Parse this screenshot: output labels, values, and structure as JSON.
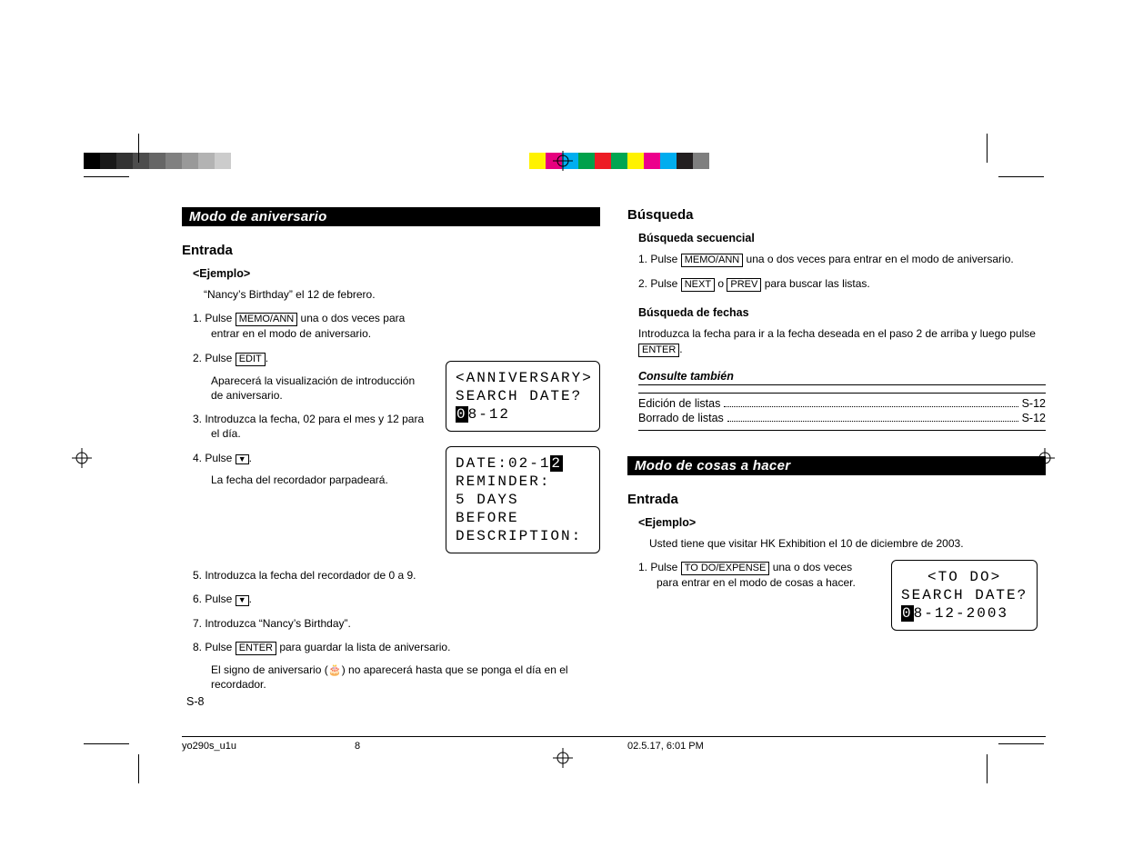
{
  "colorbar": {
    "grays": [
      "#000000",
      "#1a1a1a",
      "#333333",
      "#4d4d4d",
      "#666666",
      "#808080",
      "#999999",
      "#b3b3b3",
      "#cccccc",
      "#ffffff"
    ],
    "hues": [
      "#fff200",
      "#e6007e",
      "#00aeef",
      "#00a14b",
      "#ed1c24",
      "#00a651",
      "#fff200",
      "#ec008c",
      "#00adef",
      "#231f20",
      "#7f7f7f"
    ]
  },
  "sectionA": {
    "title": "Modo de aniversario",
    "entrada": "Entrada",
    "ejemplo": "<Ejemplo>",
    "ejemplo_text": "“Nancy’s Birthday” el 12 de febrero.",
    "step1a": "1. Pulse ",
    "step1_key": "MEMO/ANN",
    "step1b": " una o dos veces para entrar en el modo de aniversario.",
    "step2a": "2. Pulse ",
    "step2_key": "EDIT",
    "step2b": ".",
    "step2_desc": "Aparecerá la visualización de introducción de aniversario.",
    "step3": "3. Introduzca la fecha, 02 para el mes y 12 para el día.",
    "step4a": "4. Pulse ",
    "step4b": ".",
    "step4_desc": "La fecha del recordador parpadeará.",
    "step5": "5. Introduzca la fecha del recordador de 0 a 9.",
    "step6a": "6. Pulse ",
    "step6b": ".",
    "step7": "7. Introduzca “Nancy’s Birthday”.",
    "step8a": "8. Pulse ",
    "step8_key": "ENTER",
    "step8b": " para guardar la lista de aniversario.",
    "step8_desc_a": "El signo de aniversario (",
    "step8_desc_b": ") no aparecerá hasta que se ponga el día en el recordador."
  },
  "lcd1": {
    "line1": "<ANNIVERSARY>",
    "line2": "SEARCH DATE?",
    "line3a": "0",
    "line3b": "8-12"
  },
  "lcd2": {
    "line1a": "DATE:02-1",
    "line1b": "2",
    "line2": "REMINDER:",
    "line3": "5 DAYS BEFORE",
    "line4": "DESCRIPTION:"
  },
  "busqueda": {
    "title": "Búsqueda",
    "sec1": "Búsqueda secuencial",
    "s1_1a": "1. Pulse ",
    "s1_1_key": "MEMO/ANN",
    "s1_1b": " una o dos veces para entrar en el modo de aniversario.",
    "s1_2a": "2. Pulse ",
    "s1_2_k1": "NEXT",
    "s1_2_mid": " o ",
    "s1_2_k2": "PREV",
    "s1_2b": " para buscar las listas.",
    "sec2": "Búsqueda de fechas",
    "s2_pa": "Introduzca la fecha para ir a la fecha deseada en el paso 2 de arriba y luego pulse ",
    "s2_key": "ENTER",
    "s2_pb": ".",
    "consulte": "Consulte también",
    "ref1_label": "Edición de listas",
    "ref1_page": "S-12",
    "ref2_label": "Borrado de listas",
    "ref2_page": "S-12"
  },
  "sectionB": {
    "title": "Modo de cosas a hacer",
    "entrada": "Entrada",
    "ejemplo": "<Ejemplo>",
    "ejemplo_text": "Usted tiene que visitar HK Exhibition el 10 de diciembre de 2003.",
    "step1a": "1. Pulse ",
    "step1_key": "TO DO/EXPENSE",
    "step1b": " una o dos veces para entrar en el modo de cosas a hacer."
  },
  "lcd3": {
    "line1": "<TO DO>",
    "line2": "SEARCH DATE?",
    "line3a": "0",
    "line3b": "8-12-2003"
  },
  "pagenum": "S-8",
  "footer": {
    "file": "yo290s_u1u",
    "page": "8",
    "datetime": "02.5.17, 6:01 PM"
  }
}
